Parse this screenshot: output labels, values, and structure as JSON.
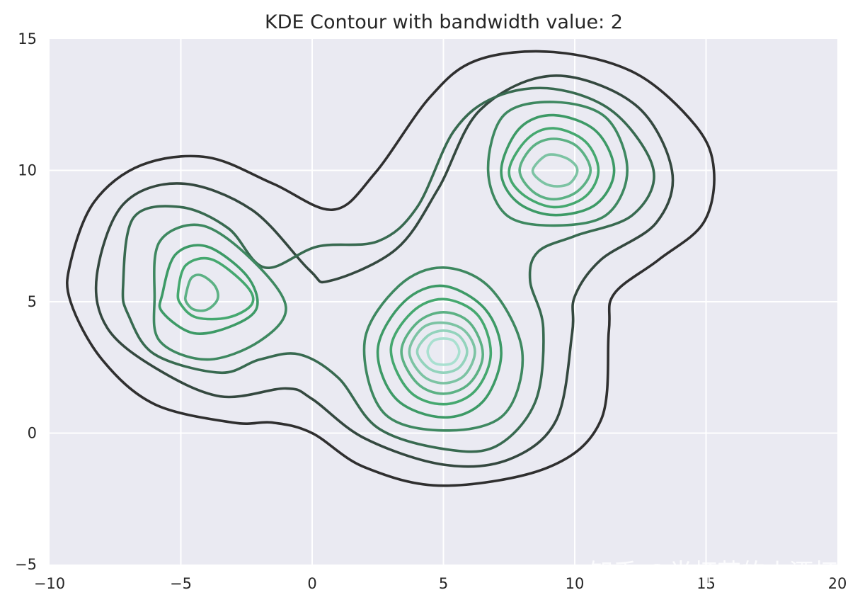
{
  "chart_data": {
    "type": "contour",
    "title": "KDE Contour with bandwidth value: 2",
    "xlabel": "",
    "ylabel": "",
    "xlim": [
      -10,
      20
    ],
    "ylim": [
      -5,
      15
    ],
    "x_ticks": [
      -10,
      -5,
      0,
      5,
      10,
      15,
      20
    ],
    "x_tick_labels": [
      "−10",
      "−5",
      "0",
      "5",
      "10",
      "15",
      "20"
    ],
    "y_ticks": [
      -5,
      0,
      5,
      10,
      15
    ],
    "y_tick_labels": [
      "−5",
      "0",
      "5",
      "10",
      "15"
    ],
    "grid": true,
    "background": "#eaeaf2",
    "grid_color": "#ffffff",
    "colormap": "dark-to-light green (#2f2f2f to #a8e0d0)",
    "density_peaks": [
      {
        "x": -4.2,
        "y": 5.3
      },
      {
        "x": 5.0,
        "y": 3.1
      },
      {
        "x": 9.2,
        "y": 10.0
      }
    ],
    "contours": [
      {
        "level": 1,
        "color": "#2f2f2f",
        "paths": [
          [
            [
              -9.2,
              6.5
            ],
            [
              -8.3,
              8.8
            ],
            [
              -6.5,
              10.2
            ],
            [
              -4.0,
              10.5
            ],
            [
              -1.5,
              9.5
            ],
            [
              0.8,
              8.5
            ],
            [
              2.4,
              9.9
            ],
            [
              4.5,
              12.8
            ],
            [
              6.3,
              14.2
            ],
            [
              9.2,
              14.5
            ],
            [
              12.3,
              13.7
            ],
            [
              14.6,
              11.7
            ],
            [
              15.3,
              10.0
            ],
            [
              14.9,
              8.0
            ],
            [
              13.2,
              6.6
            ],
            [
              11.5,
              5.3
            ],
            [
              11.3,
              3.9
            ],
            [
              11.0,
              0.5
            ],
            [
              9.0,
              -1.3
            ],
            [
              5.0,
              -2.0
            ],
            [
              2.0,
              -1.3
            ],
            [
              0.0,
              0.0
            ],
            [
              -1.5,
              0.4
            ],
            [
              -3.0,
              0.4
            ],
            [
              -6.0,
              1.1
            ],
            [
              -8.0,
              2.8
            ],
            [
              -9.2,
              5.0
            ]
          ]
        ]
      },
      {
        "level": 2,
        "color": "#34483f",
        "paths": [
          [
            [
              -8.2,
              6.0
            ],
            [
              -7.2,
              8.7
            ],
            [
              -5.0,
              9.5
            ],
            [
              -2.3,
              8.5
            ],
            [
              -0.1,
              6.2
            ],
            [
              0.7,
              5.8
            ],
            [
              3.2,
              7.0
            ],
            [
              4.8,
              9.3
            ],
            [
              6.4,
              12.3
            ],
            [
              9.2,
              13.6
            ],
            [
              12.3,
              12.5
            ],
            [
              13.7,
              10.0
            ],
            [
              13.1,
              8.0
            ],
            [
              11.0,
              6.6
            ],
            [
              10.0,
              5.2
            ],
            [
              9.9,
              3.8
            ],
            [
              9.3,
              0.5
            ],
            [
              7.5,
              -1.0
            ],
            [
              5.0,
              -1.2
            ],
            [
              2.0,
              -0.2
            ],
            [
              0.0,
              1.3
            ],
            [
              -1.0,
              1.7
            ],
            [
              -3.5,
              1.4
            ],
            [
              -6.0,
              2.5
            ],
            [
              -7.8,
              4.0
            ]
          ]
        ]
      },
      {
        "level": 3,
        "color": "#386a50",
        "paths": [
          [
            [
              -7.2,
              5.6
            ],
            [
              -6.8,
              8.2
            ],
            [
              -5.0,
              8.6
            ],
            [
              -3.2,
              7.8
            ],
            [
              -1.8,
              6.3
            ],
            [
              0.2,
              7.1
            ],
            [
              2.5,
              7.3
            ],
            [
              4.0,
              8.6
            ],
            [
              5.4,
              11.5
            ],
            [
              7.0,
              12.8
            ],
            [
              9.2,
              13.1
            ],
            [
              11.5,
              12.2
            ],
            [
              13.0,
              10.0
            ],
            [
              12.2,
              8.3
            ],
            [
              10.0,
              7.5
            ],
            [
              8.6,
              6.9
            ],
            [
              8.3,
              5.8
            ],
            [
              8.8,
              4.0
            ],
            [
              8.5,
              1.2
            ],
            [
              7.0,
              -0.5
            ],
            [
              5.0,
              -0.6
            ],
            [
              2.5,
              0.2
            ],
            [
              1.0,
              2.1
            ],
            [
              -0.5,
              3.0
            ],
            [
              -2.0,
              2.8
            ],
            [
              -3.5,
              2.3
            ],
            [
              -6.0,
              3.0
            ],
            [
              -7.0,
              4.5
            ]
          ]
        ]
      },
      {
        "level": 4,
        "color": "#3e8860",
        "paths": [
          [
            [
              -6.0,
              5.2
            ],
            [
              -5.8,
              7.3
            ],
            [
              -4.2,
              7.9
            ],
            [
              -2.3,
              6.6
            ],
            [
              -1.0,
              4.8
            ],
            [
              -2.0,
              3.5
            ],
            [
              -4.0,
              2.8
            ],
            [
              -5.8,
              3.5
            ]
          ],
          [
            [
              2.0,
              3.5
            ],
            [
              3.3,
              5.6
            ],
            [
              5.0,
              6.3
            ],
            [
              6.8,
              5.5
            ],
            [
              8.0,
              3.1
            ],
            [
              7.3,
              0.7
            ],
            [
              5.0,
              0.1
            ],
            [
              2.7,
              0.8
            ]
          ],
          [
            [
              6.7,
              10.0
            ],
            [
              7.3,
              12.1
            ],
            [
              9.2,
              12.6
            ],
            [
              11.2,
              12.0
            ],
            [
              12.0,
              10.0
            ],
            [
              11.2,
              8.3
            ],
            [
              9.2,
              7.9
            ],
            [
              7.4,
              8.3
            ]
          ]
        ]
      },
      {
        "level": 5,
        "color": "#3d9a66",
        "paths": [
          [
            [
              -5.7,
              5.3
            ],
            [
              -5.2,
              6.8
            ],
            [
              -4.0,
              7.1
            ],
            [
              -2.5,
              6.0
            ],
            [
              -2.1,
              4.8
            ],
            [
              -3.0,
              4.1
            ],
            [
              -4.5,
              3.8
            ],
            [
              -5.7,
              4.6
            ]
          ],
          [
            [
              2.5,
              3.2
            ],
            [
              3.5,
              5.0
            ],
            [
              5.0,
              5.6
            ],
            [
              6.6,
              4.7
            ],
            [
              7.2,
              3.0
            ],
            [
              6.5,
              1.2
            ],
            [
              5.0,
              0.6
            ],
            [
              3.2,
              1.3
            ]
          ],
          [
            [
              7.2,
              10.0
            ],
            [
              7.9,
              11.6
            ],
            [
              9.2,
              12.1
            ],
            [
              10.8,
              11.5
            ],
            [
              11.5,
              10.0
            ],
            [
              10.8,
              8.7
            ],
            [
              9.2,
              8.3
            ],
            [
              7.8,
              8.8
            ]
          ]
        ]
      },
      {
        "level": 6,
        "color": "#45a86f",
        "paths": [
          [
            [
              -5.1,
              5.4
            ],
            [
              -4.8,
              6.4
            ],
            [
              -3.8,
              6.6
            ],
            [
              -2.5,
              5.6
            ],
            [
              -2.3,
              4.9
            ],
            [
              -3.2,
              4.4
            ],
            [
              -4.4,
              4.4
            ],
            [
              -5.0,
              4.9
            ]
          ],
          [
            [
              3.0,
              3.2
            ],
            [
              3.8,
              4.6
            ],
            [
              5.0,
              5.1
            ],
            [
              6.3,
              4.5
            ],
            [
              6.8,
              3.0
            ],
            [
              6.2,
              1.6
            ],
            [
              5.0,
              1.1
            ],
            [
              3.7,
              1.6
            ]
          ],
          [
            [
              7.5,
              10.0
            ],
            [
              8.2,
              11.2
            ],
            [
              9.2,
              11.6
            ],
            [
              10.4,
              11.1
            ],
            [
              10.9,
              10.0
            ],
            [
              10.4,
              9.0
            ],
            [
              9.2,
              8.6
            ],
            [
              8.0,
              9.1
            ]
          ]
        ]
      },
      {
        "level": 7,
        "color": "#5cb184",
        "paths": [
          [
            [
              -4.8,
              5.3
            ],
            [
              -4.6,
              5.9
            ],
            [
              -4.2,
              6.0
            ],
            [
              -3.7,
              5.6
            ],
            [
              -3.6,
              5.1
            ],
            [
              -4.0,
              4.7
            ],
            [
              -4.5,
              4.7
            ],
            [
              -4.8,
              5.0
            ]
          ],
          [
            [
              3.4,
              3.1
            ],
            [
              4.0,
              4.2
            ],
            [
              5.0,
              4.6
            ],
            [
              6.0,
              4.2
            ],
            [
              6.5,
              3.0
            ],
            [
              6.0,
              1.9
            ],
            [
              5.0,
              1.5
            ],
            [
              4.0,
              1.9
            ]
          ],
          [
            [
              7.9,
              10.0
            ],
            [
              8.4,
              10.9
            ],
            [
              9.2,
              11.2
            ],
            [
              10.1,
              10.9
            ],
            [
              10.6,
              10.0
            ],
            [
              10.1,
              9.2
            ],
            [
              9.2,
              8.9
            ],
            [
              8.4,
              9.2
            ]
          ]
        ]
      },
      {
        "level": 8,
        "color": "#7cc3a3",
        "paths": [
          [
            [
              3.7,
              3.1
            ],
            [
              4.2,
              4.0
            ],
            [
              5.0,
              4.2
            ],
            [
              5.8,
              3.9
            ],
            [
              6.2,
              3.1
            ],
            [
              5.8,
              2.2
            ],
            [
              5.0,
              1.9
            ],
            [
              4.2,
              2.2
            ]
          ],
          [
            [
              8.4,
              10.0
            ],
            [
              8.8,
              10.5
            ],
            [
              9.2,
              10.6
            ],
            [
              9.8,
              10.4
            ],
            [
              10.1,
              10.0
            ],
            [
              9.8,
              9.5
            ],
            [
              9.2,
              9.4
            ],
            [
              8.7,
              9.6
            ]
          ]
        ]
      },
      {
        "level": 9,
        "color": "#93d3bc",
        "paths": [
          [
            [
              4.0,
              3.1
            ],
            [
              4.4,
              3.7
            ],
            [
              5.0,
              3.9
            ],
            [
              5.6,
              3.7
            ],
            [
              5.9,
              3.1
            ],
            [
              5.6,
              2.5
            ],
            [
              5.0,
              2.3
            ],
            [
              4.4,
              2.5
            ]
          ]
        ]
      },
      {
        "level": 10,
        "color": "#a9e0d0",
        "paths": [
          [
            [
              4.4,
              3.1
            ],
            [
              4.6,
              3.5
            ],
            [
              5.0,
              3.6
            ],
            [
              5.4,
              3.5
            ],
            [
              5.6,
              3.1
            ],
            [
              5.4,
              2.7
            ],
            [
              5.0,
              2.6
            ],
            [
              4.6,
              2.7
            ]
          ]
        ]
      }
    ]
  },
  "watermark": "知乎 @半杯茶的小酒杯"
}
